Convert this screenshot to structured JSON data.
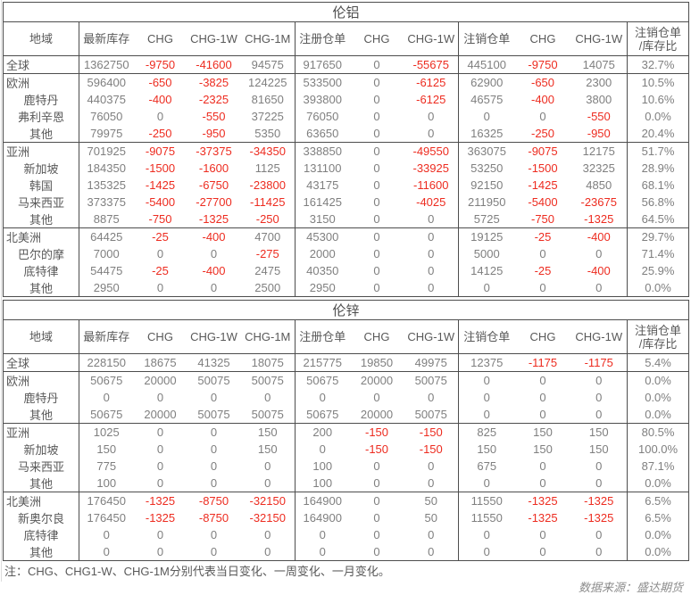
{
  "colors": {
    "border": "#4d4d4d",
    "title": "#4d4d4d",
    "label": "#595959",
    "value": "#7f7f7f",
    "negative": "#ed2c20",
    "source": "#8c8c8c",
    "gridline": "#dcdcdc"
  },
  "tables": [
    {
      "title": "伦铝",
      "columns": [
        "地域",
        "最新库存",
        "CHG",
        "CHG-1W",
        "CHG-1M",
        "注册仓单",
        "CHG",
        "CHG-1W",
        "注销仓单",
        "CHG",
        "CHG-1W",
        [
          "注销仓单",
          "/库存比"
        ]
      ],
      "rows": [
        {
          "region": "全球",
          "indent": false,
          "section": false,
          "values": [
            "1362750",
            "-9750",
            "-41600",
            "94575",
            "917650",
            "0",
            "-55675",
            "445100",
            "-9750",
            "14075",
            "32.7%"
          ]
        },
        {
          "region": "欧洲",
          "indent": false,
          "section": true,
          "values": [
            "596400",
            "-650",
            "-3825",
            "124225",
            "533500",
            "0",
            "-6125",
            "62900",
            "-650",
            "2300",
            "10.5%"
          ]
        },
        {
          "region": "鹿特丹",
          "indent": true,
          "section": false,
          "values": [
            "440375",
            "-400",
            "-2325",
            "81650",
            "393800",
            "0",
            "-6125",
            "46575",
            "-400",
            "3800",
            "10.6%"
          ]
        },
        {
          "region": "弗利辛恩",
          "indent": true,
          "section": false,
          "values": [
            "76050",
            "0",
            "-550",
            "37225",
            "76050",
            "0",
            "0",
            "0",
            "0",
            "-550",
            "0.0%"
          ]
        },
        {
          "region": "其他",
          "indent": true,
          "section": false,
          "values": [
            "79975",
            "-250",
            "-950",
            "5350",
            "63650",
            "0",
            "0",
            "16325",
            "-250",
            "-950",
            "20.4%"
          ]
        },
        {
          "region": "亚洲",
          "indent": false,
          "section": true,
          "values": [
            "701925",
            "-9075",
            "-37375",
            "-34350",
            "338850",
            "0",
            "-49550",
            "363075",
            "-9075",
            "12175",
            "51.7%"
          ]
        },
        {
          "region": "新加坡",
          "indent": true,
          "section": false,
          "values": [
            "184350",
            "-1500",
            "-1600",
            "1125",
            "131100",
            "0",
            "-33925",
            "53250",
            "-1500",
            "32325",
            "28.9%"
          ]
        },
        {
          "region": "韩国",
          "indent": true,
          "section": false,
          "values": [
            "135325",
            "-1425",
            "-6750",
            "-23800",
            "43175",
            "0",
            "-11600",
            "92150",
            "-1425",
            "4850",
            "68.1%"
          ]
        },
        {
          "region": "马来西亚",
          "indent": true,
          "section": false,
          "values": [
            "373375",
            "-5400",
            "-27700",
            "-11425",
            "161425",
            "0",
            "-4025",
            "211950",
            "-5400",
            "-23675",
            "56.8%"
          ]
        },
        {
          "region": "其他",
          "indent": true,
          "section": false,
          "values": [
            "8875",
            "-750",
            "-1325",
            "-250",
            "3150",
            "0",
            "0",
            "5725",
            "-750",
            "-1325",
            "64.5%"
          ]
        },
        {
          "region": "北美洲",
          "indent": false,
          "section": true,
          "values": [
            "64425",
            "-25",
            "-400",
            "4700",
            "45300",
            "0",
            "0",
            "19125",
            "-25",
            "-400",
            "29.7%"
          ]
        },
        {
          "region": "巴尔的摩",
          "indent": true,
          "section": false,
          "values": [
            "7000",
            "0",
            "0",
            "-275",
            "2000",
            "0",
            "0",
            "5000",
            "0",
            "0",
            "71.4%"
          ]
        },
        {
          "region": "底特律",
          "indent": true,
          "section": false,
          "values": [
            "54475",
            "-25",
            "-400",
            "2475",
            "40350",
            "0",
            "0",
            "14125",
            "-25",
            "-400",
            "25.9%"
          ]
        },
        {
          "region": "其他",
          "indent": true,
          "section": false,
          "values": [
            "2950",
            "0",
            "0",
            "2500",
            "2950",
            "0",
            "0",
            "0",
            "0",
            "0",
            "0.0%"
          ]
        }
      ]
    },
    {
      "title": "伦锌",
      "columns": [
        "地域",
        "最新库存",
        "CHG",
        "CHG-1W",
        "CHG-1M",
        "注册仓单",
        "CHG",
        "CHG-1W",
        "注销仓单",
        "CHG",
        "CHG-1W",
        [
          "注销仓单",
          "/库存比"
        ]
      ],
      "rows": [
        {
          "region": "全球",
          "indent": false,
          "section": false,
          "values": [
            "228150",
            "18675",
            "41325",
            "18075",
            "215775",
            "19850",
            "49975",
            "12375",
            "-1175",
            "-1175",
            "5.4%"
          ]
        },
        {
          "region": "欧洲",
          "indent": false,
          "section": true,
          "values": [
            "50675",
            "20000",
            "50075",
            "50075",
            "50675",
            "20000",
            "50075",
            "0",
            "0",
            "0",
            "0.0%"
          ]
        },
        {
          "region": "鹿特丹",
          "indent": true,
          "section": false,
          "values": [
            "0",
            "0",
            "0",
            "0",
            "0",
            "0",
            "0",
            "0",
            "0",
            "0",
            "0.0%"
          ]
        },
        {
          "region": "其他",
          "indent": true,
          "section": false,
          "values": [
            "50675",
            "20000",
            "50075",
            "50075",
            "50675",
            "20000",
            "50075",
            "0",
            "0",
            "0",
            "0.0%"
          ]
        },
        {
          "region": "亚洲",
          "indent": false,
          "section": true,
          "values": [
            "1025",
            "0",
            "0",
            "150",
            "200",
            "-150",
            "-150",
            "825",
            "150",
            "150",
            "80.5%"
          ]
        },
        {
          "region": "新加坡",
          "indent": true,
          "section": false,
          "values": [
            "150",
            "0",
            "0",
            "150",
            "0",
            "-150",
            "-150",
            "150",
            "150",
            "150",
            "100.0%"
          ]
        },
        {
          "region": "马来西亚",
          "indent": true,
          "section": false,
          "values": [
            "775",
            "0",
            "0",
            "0",
            "100",
            "0",
            "0",
            "675",
            "0",
            "0",
            "87.1%"
          ]
        },
        {
          "region": "其他",
          "indent": true,
          "section": false,
          "values": [
            "100",
            "0",
            "0",
            "0",
            "100",
            "0",
            "0",
            "0",
            "0",
            "0",
            "0.0%"
          ]
        },
        {
          "region": "北美洲",
          "indent": false,
          "section": true,
          "values": [
            "176450",
            "-1325",
            "-8750",
            "-32150",
            "164900",
            "0",
            "50",
            "11550",
            "-1325",
            "-1325",
            "6.5%"
          ]
        },
        {
          "region": "新奥尔良",
          "indent": true,
          "section": false,
          "values": [
            "176450",
            "-1325",
            "-8750",
            "-32150",
            "164900",
            "0",
            "50",
            "11550",
            "-1325",
            "-1325",
            "6.5%"
          ]
        },
        {
          "region": "底特律",
          "indent": true,
          "section": false,
          "values": [
            "0",
            "0",
            "0",
            "0",
            "0",
            "0",
            "0",
            "0",
            "0",
            "0",
            "0.0%"
          ]
        },
        {
          "region": "其他",
          "indent": true,
          "section": false,
          "values": [
            "0",
            "0",
            "0",
            "0",
            "0",
            "0",
            "0",
            "0",
            "0",
            "0",
            "0.0%"
          ]
        }
      ]
    }
  ],
  "note": "注：CHG、CHG1-W、CHG-1M分别代表当日变化、一周变化、一月变化。",
  "source": "数据来源：盛达期货"
}
